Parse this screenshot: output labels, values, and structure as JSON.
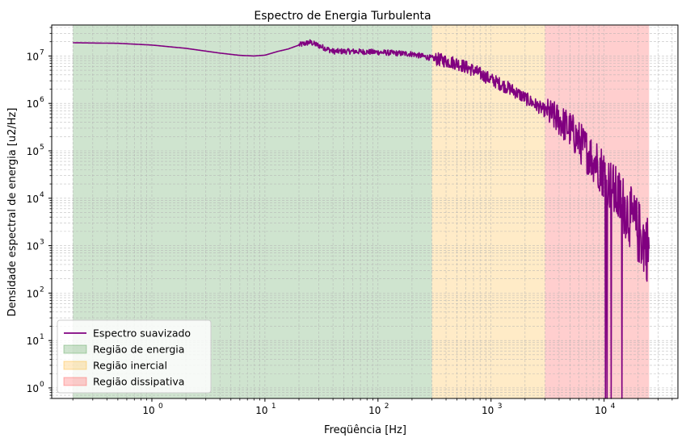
{
  "chart_data": {
    "type": "line",
    "title": "Espectro de Energia Turbulenta",
    "xlabel": "Freqüência [Hz]",
    "ylabel": "Densidade espectral de energia [u2/Hz]",
    "x_scale": "log",
    "y_scale": "log",
    "xlim": [
      0.13,
      45000
    ],
    "ylim": [
      0.6,
      45000000
    ],
    "x_ticks": [
      {
        "value": 1,
        "base": "10",
        "exp": "0"
      },
      {
        "value": 10,
        "base": "10",
        "exp": "1"
      },
      {
        "value": 100,
        "base": "10",
        "exp": "2"
      },
      {
        "value": 1000,
        "base": "10",
        "exp": "3"
      },
      {
        "value": 10000,
        "base": "10",
        "exp": "4"
      }
    ],
    "y_ticks": [
      {
        "value": 1,
        "base": "10",
        "exp": "0"
      },
      {
        "value": 10,
        "base": "10",
        "exp": "1"
      },
      {
        "value": 100,
        "base": "10",
        "exp": "2"
      },
      {
        "value": 1000,
        "base": "10",
        "exp": "3"
      },
      {
        "value": 10000,
        "base": "10",
        "exp": "4"
      },
      {
        "value": 100000,
        "base": "10",
        "exp": "5"
      },
      {
        "value": 1000000,
        "base": "10",
        "exp": "6"
      },
      {
        "value": 10000000,
        "base": "10",
        "exp": "7"
      }
    ],
    "grid": true,
    "legend_position": "lower-left",
    "regions": [
      {
        "name": "Região de energia",
        "x_start": 0.2,
        "x_end": 300,
        "color": "#2e8b2e",
        "alpha": 0.23
      },
      {
        "name": "Região inercial",
        "x_start": 300,
        "x_end": 3000,
        "color": "#ffa500",
        "alpha": 0.22
      },
      {
        "name": "Região dissipativa",
        "x_start": 3000,
        "x_end": 25000,
        "color": "#ff3333",
        "alpha": 0.24
      }
    ],
    "series": [
      {
        "name": "Espectro suavizado",
        "color": "#800080",
        "points": [
          [
            0.2,
            19000000
          ],
          [
            0.5,
            18500000
          ],
          [
            1,
            17000000
          ],
          [
            2,
            14500000
          ],
          [
            4,
            11500000
          ],
          [
            6,
            10300000
          ],
          [
            8,
            10000000
          ],
          [
            10,
            10400000
          ],
          [
            13,
            12500000
          ],
          [
            16,
            14000000
          ],
          [
            20,
            17000000
          ],
          [
            25,
            19500000
          ],
          [
            30,
            16500000
          ],
          [
            40,
            12500000
          ],
          [
            60,
            12500000
          ],
          [
            100,
            12000000
          ],
          [
            200,
            11000000
          ],
          [
            300,
            9000000
          ],
          [
            500,
            7000000
          ],
          [
            700,
            5000000
          ],
          [
            1000,
            3200000
          ],
          [
            1500,
            2000000
          ],
          [
            2000,
            1300000
          ],
          [
            3000,
            700000
          ],
          [
            4000,
            450000
          ],
          [
            5000,
            280000
          ],
          [
            7000,
            100000
          ],
          [
            9000,
            50000
          ],
          [
            12000,
            15000
          ],
          [
            15000,
            7000
          ],
          [
            20000,
            2000
          ],
          [
            25000,
            800
          ]
        ]
      }
    ]
  }
}
